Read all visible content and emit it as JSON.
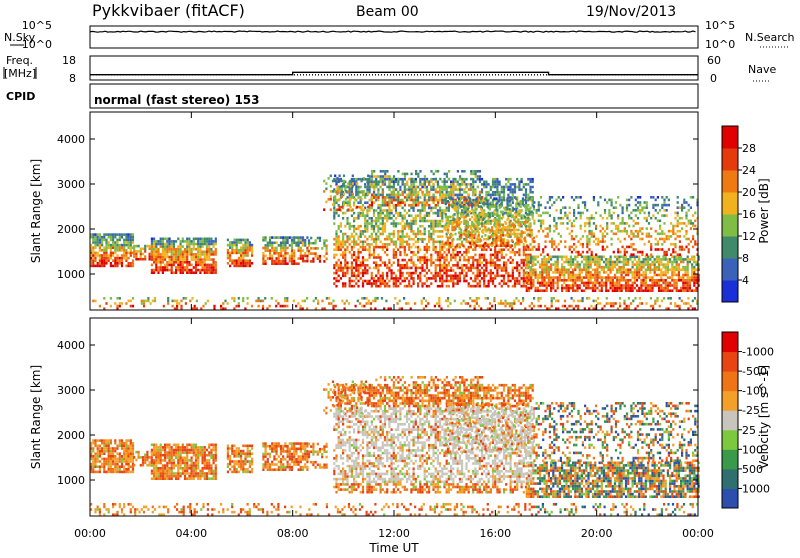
{
  "header": {
    "station": "Pykkvibaer (fitACF)",
    "beam": "Beam 00",
    "date": "19/Nov/2013"
  },
  "chart_data": [
    {
      "type": "line",
      "name_label": "N.Sky",
      "right_label": "N.Search",
      "left_ticks": [
        "10^5",
        "10^0"
      ],
      "right_ticks": [
        "10^5",
        "10^0"
      ],
      "scale": "log",
      "x_range": [
        "00:00",
        "24:00"
      ],
      "nsky_baseline": "near 10^5 throughout"
    },
    {
      "type": "line",
      "left_label": "Freq. [MHz]",
      "right_label": "Nave",
      "left_ticks": [
        18,
        8
      ],
      "right_ticks": [
        60,
        0
      ],
      "series": [
        {
          "x": [
            0,
            8.0,
            8.0,
            18.1,
            18.1,
            24
          ],
          "y": [
            10.2,
            10.2,
            11.2,
            11.2,
            10.2,
            10.2
          ]
        }
      ],
      "nave_level": 13
    },
    {
      "type": "text",
      "label": "CPID",
      "value": "normal (fast stereo) 153"
    },
    {
      "type": "heatmap",
      "xlabel": "",
      "ylabel": "Slant Range [km]",
      "ylim": [
        200,
        4600
      ],
      "y_ticks": [
        1000,
        2000,
        3000,
        4000
      ],
      "colorbar": {
        "label": "Power [dB]",
        "ticks": [
          "4",
          "8",
          "12",
          "16",
          "20",
          "24",
          "28"
        ],
        "colors": [
          "#1a2fd6",
          "#3a62b8",
          "#3f8a6a",
          "#7fbd45",
          "#f2b21f",
          "#f07a12",
          "#e53a0c",
          "#e00000"
        ]
      }
    },
    {
      "type": "heatmap",
      "xlabel": "Time UT",
      "ylabel": "Slant Range [km]",
      "ylim": [
        200,
        4600
      ],
      "y_ticks": [
        1000,
        2000,
        3000,
        4000
      ],
      "x_ticks": [
        "00:00",
        "04:00",
        "08:00",
        "12:00",
        "16:00",
        "20:00",
        "00:00"
      ],
      "colorbar": {
        "label": "Velocity [m s^-1]",
        "ticks": [
          "1000",
          "500",
          "100",
          "25",
          "-25",
          "-100",
          "-500",
          "-1000"
        ],
        "colors": [
          "#2c4fae",
          "#2f6f6f",
          "#3a9a4c",
          "#7cc83e",
          "#c9c5bd",
          "#f2a02a",
          "#ef7416",
          "#e84414",
          "#e00000"
        ]
      }
    }
  ]
}
